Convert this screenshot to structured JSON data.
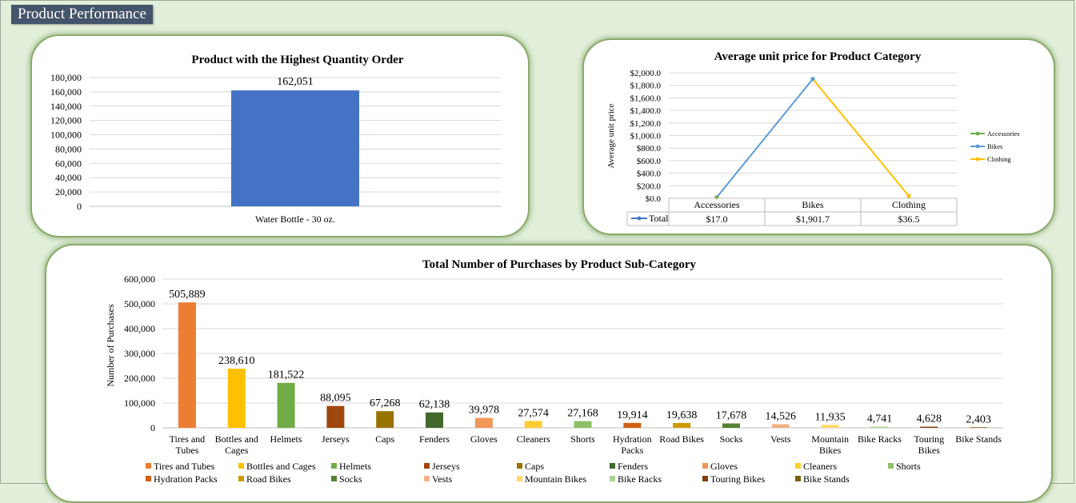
{
  "page": {
    "title": "Product Performance"
  },
  "chart_data": [
    {
      "type": "bar",
      "title": "Product with the Highest Quantity Order",
      "categories": [
        "Water Bottle - 30 oz."
      ],
      "values": [
        162051
      ],
      "data_labels": [
        "162,051"
      ],
      "ylim": [
        0,
        180000
      ],
      "yticks": [
        "0",
        "20,000",
        "40,000",
        "60,000",
        "80,000",
        "100,000",
        "120,000",
        "140,000",
        "160,000",
        "180,000"
      ],
      "grid": true,
      "colors": {
        "bar": "#4472c4"
      }
    },
    {
      "type": "line",
      "title": "Average unit price for Product Category",
      "ylabel": "Average unit price",
      "categories": [
        "Accessories",
        "Bikes",
        "Clothing"
      ],
      "values": [
        17.0,
        1901.7,
        36.5
      ],
      "table_row_label": "Total",
      "table_values": [
        "$17.0",
        "$1,901.7",
        "$36.5"
      ],
      "ylim": [
        0,
        2000
      ],
      "yticks": [
        "$0.0",
        "$200.0",
        "$400.0",
        "$600.0",
        "$800.0",
        "$1,000.0",
        "$1,200.0",
        "$1,400.0",
        "$1,600.0",
        "$1,800.0",
        "$2,000.0"
      ],
      "legend": [
        "Accessories",
        "Bikes",
        "Clothing"
      ],
      "legend_position": "right",
      "grid": true,
      "colors": {
        "Accessories": "#70ad47",
        "Bikes": "#5b9bd5",
        "Clothing": "#ffc000"
      }
    },
    {
      "type": "bar",
      "title": "Total Number of Purchases by Product Sub-Category",
      "ylabel": "Number of Purchases",
      "categories": [
        "Tires and Tubes",
        "Bottles and Cages",
        "Helmets",
        "Jerseys",
        "Caps",
        "Fenders",
        "Gloves",
        "Cleaners",
        "Shorts",
        "Hydration Packs",
        "Road Bikes",
        "Socks",
        "Vests",
        "Mountain Bikes",
        "Bike Racks",
        "Touring Bikes",
        "Bike Stands"
      ],
      "category_labels": [
        [
          "Tires and",
          "Tubes"
        ],
        [
          "Bottles and",
          "Cages"
        ],
        [
          "Helmets"
        ],
        [
          "Jerseys"
        ],
        [
          "Caps"
        ],
        [
          "Fenders"
        ],
        [
          "Gloves"
        ],
        [
          "Cleaners"
        ],
        [
          "Shorts"
        ],
        [
          "Hydration",
          "Packs"
        ],
        [
          "Road Bikes"
        ],
        [
          "Socks"
        ],
        [
          "Vests"
        ],
        [
          "Mountain",
          "Bikes"
        ],
        [
          "Bike Racks"
        ],
        [
          "Touring",
          "Bikes"
        ],
        [
          "Bike Stands"
        ]
      ],
      "values": [
        505889,
        238610,
        181522,
        88095,
        67268,
        62138,
        39978,
        27574,
        27168,
        19914,
        19638,
        17678,
        14526,
        11935,
        4741,
        4628,
        2403
      ],
      "data_labels": [
        "505,889",
        "238,610",
        "181,522",
        "88,095",
        "67,268",
        "62,138",
        "39,978",
        "27,574",
        "27,168",
        "19,914",
        "19,638",
        "17,678",
        "14,526",
        "11,935",
        "4,741",
        "4,628",
        "2,403"
      ],
      "ylim": [
        0,
        600000
      ],
      "yticks": [
        "0",
        "100,000",
        "200,000",
        "300,000",
        "400,000",
        "500,000",
        "600,000"
      ],
      "legend_position": "bottom",
      "grid": true,
      "colors": [
        "#ed7d31",
        "#ffc000",
        "#70ad47",
        "#9e480e",
        "#997300",
        "#43682b",
        "#f1975a",
        "#ffcd33",
        "#8cc168",
        "#d26012",
        "#cc9a00",
        "#548235",
        "#f4b183",
        "#ffd966",
        "#a9d18e",
        "#843c0c",
        "#7f6000"
      ]
    }
  ]
}
